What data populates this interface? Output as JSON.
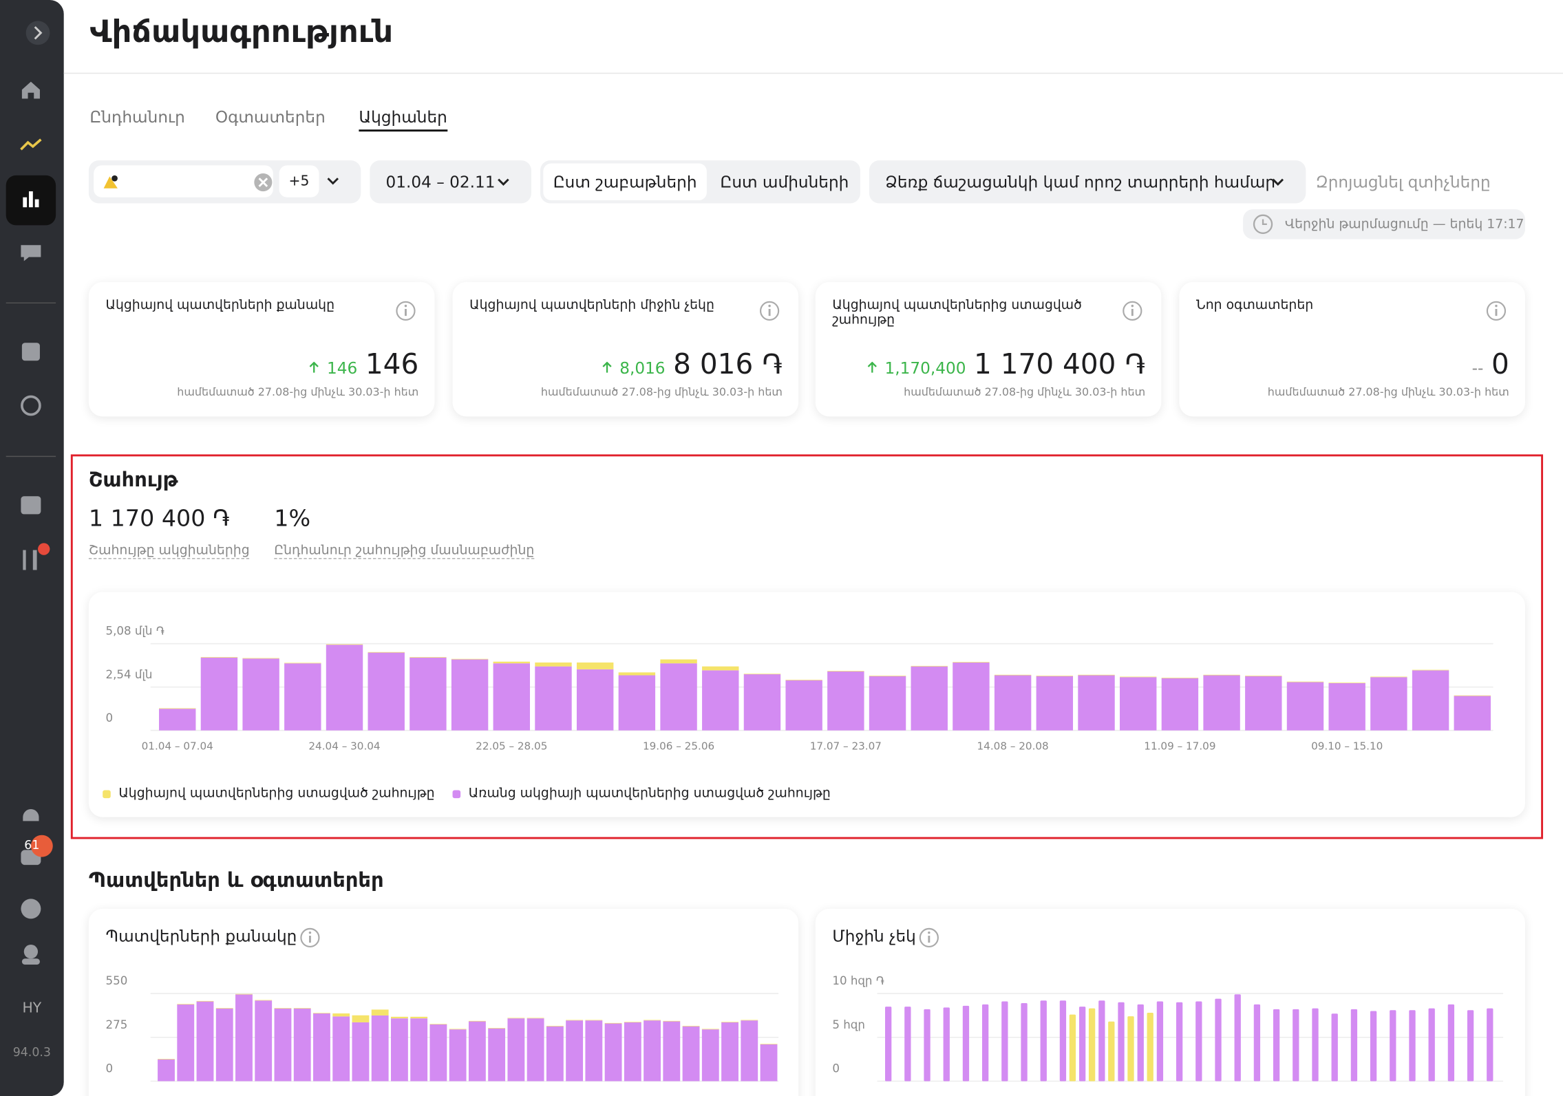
{
  "sidebar": {
    "lang": "HY",
    "version": "94.0.3",
    "badge": "61"
  },
  "header": {
    "title": "Վիճակագրություն"
  },
  "tabs": [
    "Ընդհանուր",
    "Օգտատերեր",
    "Ակցիաներ"
  ],
  "filters": {
    "more": "+5",
    "date": "01.04 – 02.11",
    "period_options": [
      "Ըստ շաբաթների",
      "Ըստ ամիսների"
    ],
    "search": "Ձեռք ճաշացանկի կամ որոշ տարրերի համար",
    "reset": "Զրոյացնել զտիչները",
    "updated": "Վերջին թարմացումը — երեկ 17:17"
  },
  "kpis": [
    {
      "title": "Ակցիայով պատվերների քանակը",
      "delta": "146",
      "value": "146",
      "note": "համեմատած 27.08-ից մինչև 30.03-ի հետ"
    },
    {
      "title": "Ակցիայով պատվերների միջին չեկը",
      "delta": "8,016",
      "value": "8 016 ֏",
      "note": "համեմատած 27.08-ից մինչև 30.03-ի հետ"
    },
    {
      "title": "Ակցիայով պատվերներից ստացված շահույթը",
      "delta": "1,170,400",
      "value": "1 170 400 ֏",
      "note": "համեմատած 27.08-ից մինչև 30.03-ի հետ"
    },
    {
      "title": "Նոր օգտատերեր",
      "delta": "--",
      "value": "0",
      "note": "համեմատած 27.08-ից մինչև 30.03-ի հետ"
    }
  ],
  "revenue": {
    "title": "Շահույթ",
    "stats": [
      {
        "value": "1 170 400 ֏",
        "label": "Շահույթը ակցիաներից"
      },
      {
        "value": "1%",
        "label": "Ընդհանուր շահույթից մասնաբաժինը"
      }
    ]
  },
  "section2": {
    "title": "Պատվերներ և օգտատերեր"
  },
  "chart_data": [
    {
      "type": "bar",
      "stacked": true,
      "grid": true,
      "categories": [
        "01.04 – 07.04",
        null,
        null,
        null,
        "24.04 – 30.04",
        null,
        null,
        null,
        "22.05 – 28.05",
        null,
        null,
        null,
        "19.06 – 25.06",
        null,
        null,
        null,
        "17.07 – 23.07",
        null,
        null,
        null,
        "14.08 – 20.08",
        null,
        null,
        null,
        "11.09 – 17.09",
        null,
        null,
        null,
        "09.10 – 15.10",
        null,
        null,
        null
      ],
      "ylim": [
        0,
        5.08
      ],
      "yticks": [
        0,
        {
          "value": 2.54,
          "label": "2,54 մլն"
        },
        {
          "value": 5.08,
          "label": "5,08 մլն ֏"
        }
      ],
      "series": [
        {
          "name": "Առանց ակցիայի պատվերներից ստացված շահույթը",
          "color": "#d38bf2",
          "values": [
            1.27,
            4.27,
            4.21,
            3.93,
            5.02,
            4.56,
            4.27,
            4.16,
            3.93,
            3.75,
            3.58,
            3.23,
            3.93,
            3.52,
            3.29,
            2.94,
            3.46,
            3.18,
            3.75,
            3.98,
            3.23,
            3.18,
            3.23,
            3.12,
            3.06,
            3.23,
            3.18,
            2.83,
            2.77,
            3.12,
            3.52,
            2.02
          ]
        },
        {
          "name": "Ակցիայով պատվերներից ստացված շահույթը",
          "color": "#f5e36a",
          "values": [
            0.03,
            0.03,
            0.03,
            0.03,
            0.03,
            0.03,
            0.03,
            0.03,
            0.1,
            0.23,
            0.4,
            0.17,
            0.23,
            0.23,
            0.03,
            0.03,
            0.03,
            0.03,
            0.03,
            0.03,
            0.03,
            0.03,
            0.03,
            0.03,
            0.03,
            0.03,
            0.03,
            0.03,
            0.03,
            0.03,
            0.03,
            0.03
          ]
        }
      ]
    },
    {
      "type": "bar",
      "stacked": true,
      "grid": true,
      "title": "Պատվերների քանակը",
      "ylim": [
        0,
        550
      ],
      "yticks": [
        0,
        275,
        550
      ],
      "series": [
        {
          "color": "#d38bf2",
          "values": [
            137,
            481,
            500,
            456,
            544,
            506,
            456,
            456,
            425,
            406,
            369,
            412,
            394,
            394,
            356,
            325,
            375,
            331,
            394,
            394,
            344,
            381,
            381,
            362,
            369,
            381,
            375,
            344,
            325,
            369,
            381,
            231
          ]
        },
        {
          "color": "#f5e36a",
          "values": [
            3,
            3,
            3,
            3,
            3,
            3,
            3,
            3,
            3,
            19,
            44,
            37,
            10,
            10,
            3,
            3,
            3,
            3,
            3,
            3,
            3,
            3,
            3,
            3,
            3,
            3,
            3,
            3,
            3,
            3,
            3,
            3
          ]
        }
      ]
    },
    {
      "type": "bar",
      "stacked": false,
      "grid": true,
      "title": "Միջին չեկ",
      "ylim": [
        0,
        10
      ],
      "yticks": [
        0,
        {
          "value": 5,
          "label": "5 հզր"
        },
        {
          "value": 10,
          "label": "10 հզր ֏"
        }
      ],
      "series": [
        {
          "color": "#d38bf2",
          "values": [
            8.5,
            8.5,
            8.2,
            8.4,
            8.6,
            8.75,
            9.1,
            8.9,
            9.2,
            9.2,
            8.5,
            9.2,
            9.0,
            8.75,
            9.1,
            9.0,
            9.1,
            9.4,
            9.9,
            8.75,
            8.2,
            8.2,
            8.3,
            7.7,
            8.2,
            8.0,
            8.1,
            8.1,
            8.3,
            8.75,
            8.1,
            8.3
          ]
        },
        {
          "color": "#f5e36a",
          "values": [
            0,
            0,
            0,
            0,
            0,
            0,
            0,
            0,
            0,
            7.6,
            8.3,
            6.8,
            7.4,
            7.8,
            0,
            0,
            0,
            0,
            0,
            0,
            0,
            0,
            0,
            0,
            0,
            0,
            0,
            0,
            0,
            0,
            0,
            0
          ]
        }
      ]
    }
  ]
}
